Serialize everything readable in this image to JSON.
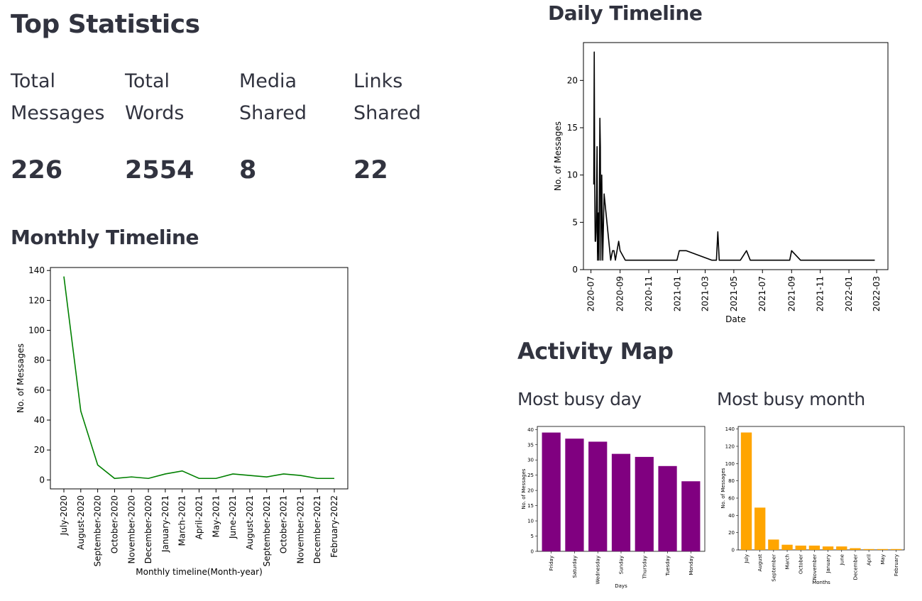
{
  "top_stats": {
    "title": "Top Statistics",
    "metrics": [
      {
        "label": "Total Messages",
        "value": "226"
      },
      {
        "label": "Total Words",
        "value": "2554"
      },
      {
        "label": "Media Shared",
        "value": "8"
      },
      {
        "label": "Links Shared",
        "value": "22"
      }
    ]
  },
  "sections": {
    "monthly": "Monthly Timeline",
    "daily": "Daily Timeline",
    "activity": "Activity Map",
    "busy_day": "Most busy day",
    "busy_month": "Most busy month"
  },
  "colors": {
    "monthly_line": "#008000",
    "daily_line": "#000000",
    "busy_day_bar": "#800080",
    "busy_month_bar": "#FFA500"
  },
  "chart_data": [
    {
      "id": "monthly",
      "type": "line",
      "xlabel": "Monthly timeline(Month-year)",
      "ylabel": "No. of Messages",
      "ylim": [
        -6,
        142
      ],
      "yticks": [
        0,
        20,
        40,
        60,
        80,
        100,
        120,
        140
      ],
      "categories": [
        "July-2020",
        "August-2020",
        "September-2020",
        "October-2020",
        "November-2020",
        "December-2020",
        "January-2021",
        "March-2021",
        "April-2021",
        "May-2021",
        "June-2021",
        "August-2021",
        "September-2021",
        "October-2021",
        "November-2021",
        "December-2021",
        "February-2022"
      ],
      "values": [
        136,
        46,
        10,
        1,
        2,
        1,
        4,
        6,
        1,
        1,
        4,
        3,
        2,
        4,
        3,
        1,
        1
      ]
    },
    {
      "id": "daily",
      "type": "line",
      "xlabel": "Date",
      "ylabel": "No. of Messages",
      "ylim": [
        0,
        24
      ],
      "yticks": [
        0,
        5,
        10,
        15,
        20
      ],
      "xlim": [
        "2020-06-15",
        "2022-03-25"
      ],
      "xticks": [
        "2020-07",
        "2020-09",
        "2020-11",
        "2021-01",
        "2021-03",
        "2021-05",
        "2021-07",
        "2021-09",
        "2021-11",
        "2022-01",
        "2022-03"
      ],
      "points": [
        [
          "2020-07-07",
          9
        ],
        [
          "2020-07-08",
          23
        ],
        [
          "2020-07-09",
          9
        ],
        [
          "2020-07-10",
          3
        ],
        [
          "2020-07-11",
          3
        ],
        [
          "2020-07-12",
          4
        ],
        [
          "2020-07-13",
          8
        ],
        [
          "2020-07-14",
          13
        ],
        [
          "2020-07-15",
          1
        ],
        [
          "2020-07-17",
          6
        ],
        [
          "2020-07-18",
          1
        ],
        [
          "2020-07-20",
          16
        ],
        [
          "2020-07-21",
          13
        ],
        [
          "2020-07-22",
          1
        ],
        [
          "2020-07-24",
          10
        ],
        [
          "2020-07-26",
          1
        ],
        [
          "2020-07-29",
          8
        ],
        [
          "2020-08-12",
          1
        ],
        [
          "2020-08-16",
          2
        ],
        [
          "2020-08-19",
          2
        ],
        [
          "2020-08-22",
          1
        ],
        [
          "2020-08-29",
          3
        ],
        [
          "2020-09-01",
          2
        ],
        [
          "2020-09-12",
          1
        ],
        [
          "2020-12-31",
          1
        ],
        [
          "2021-01-05",
          2
        ],
        [
          "2021-01-20",
          2
        ],
        [
          "2021-03-15",
          1
        ],
        [
          "2021-03-25",
          1
        ],
        [
          "2021-03-28",
          4
        ],
        [
          "2021-03-31",
          1
        ],
        [
          "2021-05-15",
          1
        ],
        [
          "2021-05-28",
          2
        ],
        [
          "2021-06-05",
          1
        ],
        [
          "2021-08-28",
          1
        ],
        [
          "2021-09-01",
          2
        ],
        [
          "2021-09-20",
          1
        ],
        [
          "2022-02-25",
          1
        ]
      ]
    },
    {
      "id": "busy_day",
      "type": "bar",
      "xlabel": "Days",
      "ylabel": "No. of Messages",
      "ylim": [
        0,
        41
      ],
      "yticks": [
        0,
        5,
        10,
        15,
        20,
        25,
        30,
        35,
        40
      ],
      "categories": [
        "Friday",
        "Saturday",
        "Wednesday",
        "Sunday",
        "Thursday",
        "Tuesday",
        "Monday"
      ],
      "values": [
        39,
        37,
        36,
        32,
        31,
        28,
        23
      ]
    },
    {
      "id": "busy_month",
      "type": "bar",
      "xlabel": "Months",
      "ylabel": "No. of Messages",
      "ylim": [
        0,
        143
      ],
      "yticks": [
        0,
        20,
        40,
        60,
        80,
        100,
        120,
        140
      ],
      "categories": [
        "July",
        "August",
        "September",
        "March",
        "October",
        "November",
        "January",
        "June",
        "December",
        "April",
        "May",
        "February"
      ],
      "values": [
        136,
        49,
        12,
        6,
        5,
        5,
        4,
        4,
        2,
        1,
        1,
        1
      ]
    }
  ]
}
